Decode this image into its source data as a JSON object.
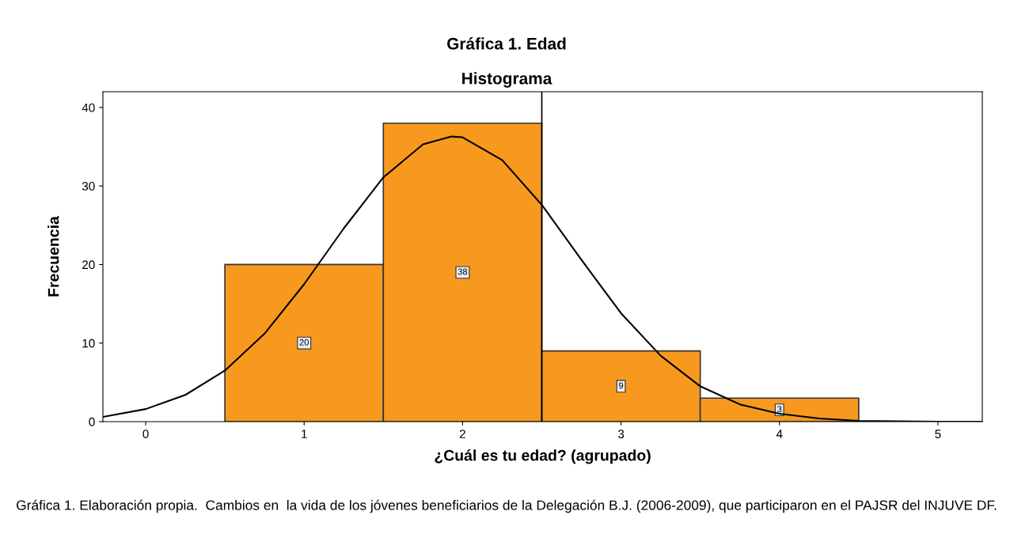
{
  "chart_data": {
    "type": "histogram",
    "title": "Gráfica 1. Edad",
    "subtitle": "Histograma",
    "xlabel": "¿Cuál es tu edad? (agrupado)",
    "ylabel": "Frecuencia",
    "bins": [
      0.5,
      1.5,
      2.5,
      3.5,
      4.5
    ],
    "values": [
      20,
      38,
      9,
      3
    ],
    "color": "#f7991f",
    "value_labels": [
      "20",
      "38",
      "9",
      "3"
    ],
    "series": [
      {
        "type": "line",
        "color": "#000000",
        "x": [
          -0.27,
          0,
          0.25,
          0.5,
          0.75,
          1.0,
          1.25,
          1.5,
          1.75,
          1.93,
          2.0,
          2.25,
          2.5,
          2.75,
          3.0,
          3.25,
          3.5,
          3.75,
          4.0,
          4.25,
          4.5,
          5.0,
          5.28
        ],
        "values": [
          0.6,
          1.6,
          3.4,
          6.5,
          11.2,
          17.5,
          24.6,
          31.1,
          35.3,
          36.3,
          36.2,
          33.3,
          27.6,
          20.6,
          13.8,
          8.4,
          4.5,
          2.2,
          1.0,
          0.4,
          0.1,
          0.0,
          0.0
        ]
      }
    ],
    "ref_lines": [
      {
        "axis": "x",
        "value": 2.5,
        "color": "#000000"
      }
    ],
    "xlim": [
      -0.27,
      5.28
    ],
    "ylim": [
      0,
      42
    ],
    "xticks": [
      0,
      1,
      2,
      3,
      4,
      5
    ],
    "yticks": [
      0,
      10,
      20,
      30,
      40
    ],
    "grid": false,
    "legend": false,
    "annotations": [
      "Gráfica 1. Elaboración propia.  Cambios en  la vida de los jóvenes beneficiarios de la Delegación B.J. (2006-2009), que participaron en el PAJSR del INJUVE DF."
    ]
  }
}
